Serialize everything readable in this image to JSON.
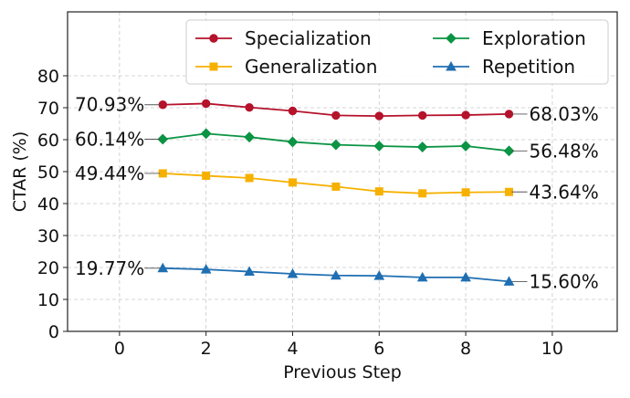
{
  "chart_data": {
    "type": "line",
    "title": "",
    "xlabel": "Previous Step",
    "ylabel": "CTAR (%)",
    "xlim": [
      -1.2,
      11.5
    ],
    "ylim": [
      0,
      100
    ],
    "x_ticks": [
      0,
      2,
      4,
      6,
      8,
      10
    ],
    "y_ticks": [
      0,
      10,
      20,
      30,
      40,
      50,
      60,
      70,
      80
    ],
    "grid": true,
    "legend_position": "top-right",
    "legend_columns": 2,
    "x": [
      1,
      2,
      3,
      4,
      5,
      6,
      7,
      8,
      9
    ],
    "series": [
      {
        "name": "Specialization",
        "color": "#b5122b",
        "marker": "circle",
        "values": [
          70.93,
          71.3,
          70.1,
          69.0,
          67.6,
          67.4,
          67.6,
          67.7,
          68.03
        ],
        "start_label": "70.93%",
        "end_label": "68.03%"
      },
      {
        "name": "Generalization",
        "color": "#f6b100",
        "marker": "square",
        "values": [
          49.44,
          48.7,
          48.0,
          46.6,
          45.3,
          43.8,
          43.2,
          43.5,
          43.64
        ],
        "start_label": "49.44%",
        "end_label": "43.64%"
      },
      {
        "name": "Exploration",
        "color": "#0b9444",
        "marker": "diamond",
        "values": [
          60.14,
          61.9,
          60.8,
          59.3,
          58.4,
          58.0,
          57.7,
          58.0,
          56.48
        ],
        "start_label": "60.14%",
        "end_label": "56.48%"
      },
      {
        "name": "Repetition",
        "color": "#1f6fb2",
        "marker": "triangle",
        "values": [
          19.77,
          19.4,
          18.7,
          18.0,
          17.5,
          17.4,
          16.9,
          16.9,
          15.6
        ],
        "start_label": "19.77%",
        "end_label": "15.60%"
      }
    ]
  }
}
